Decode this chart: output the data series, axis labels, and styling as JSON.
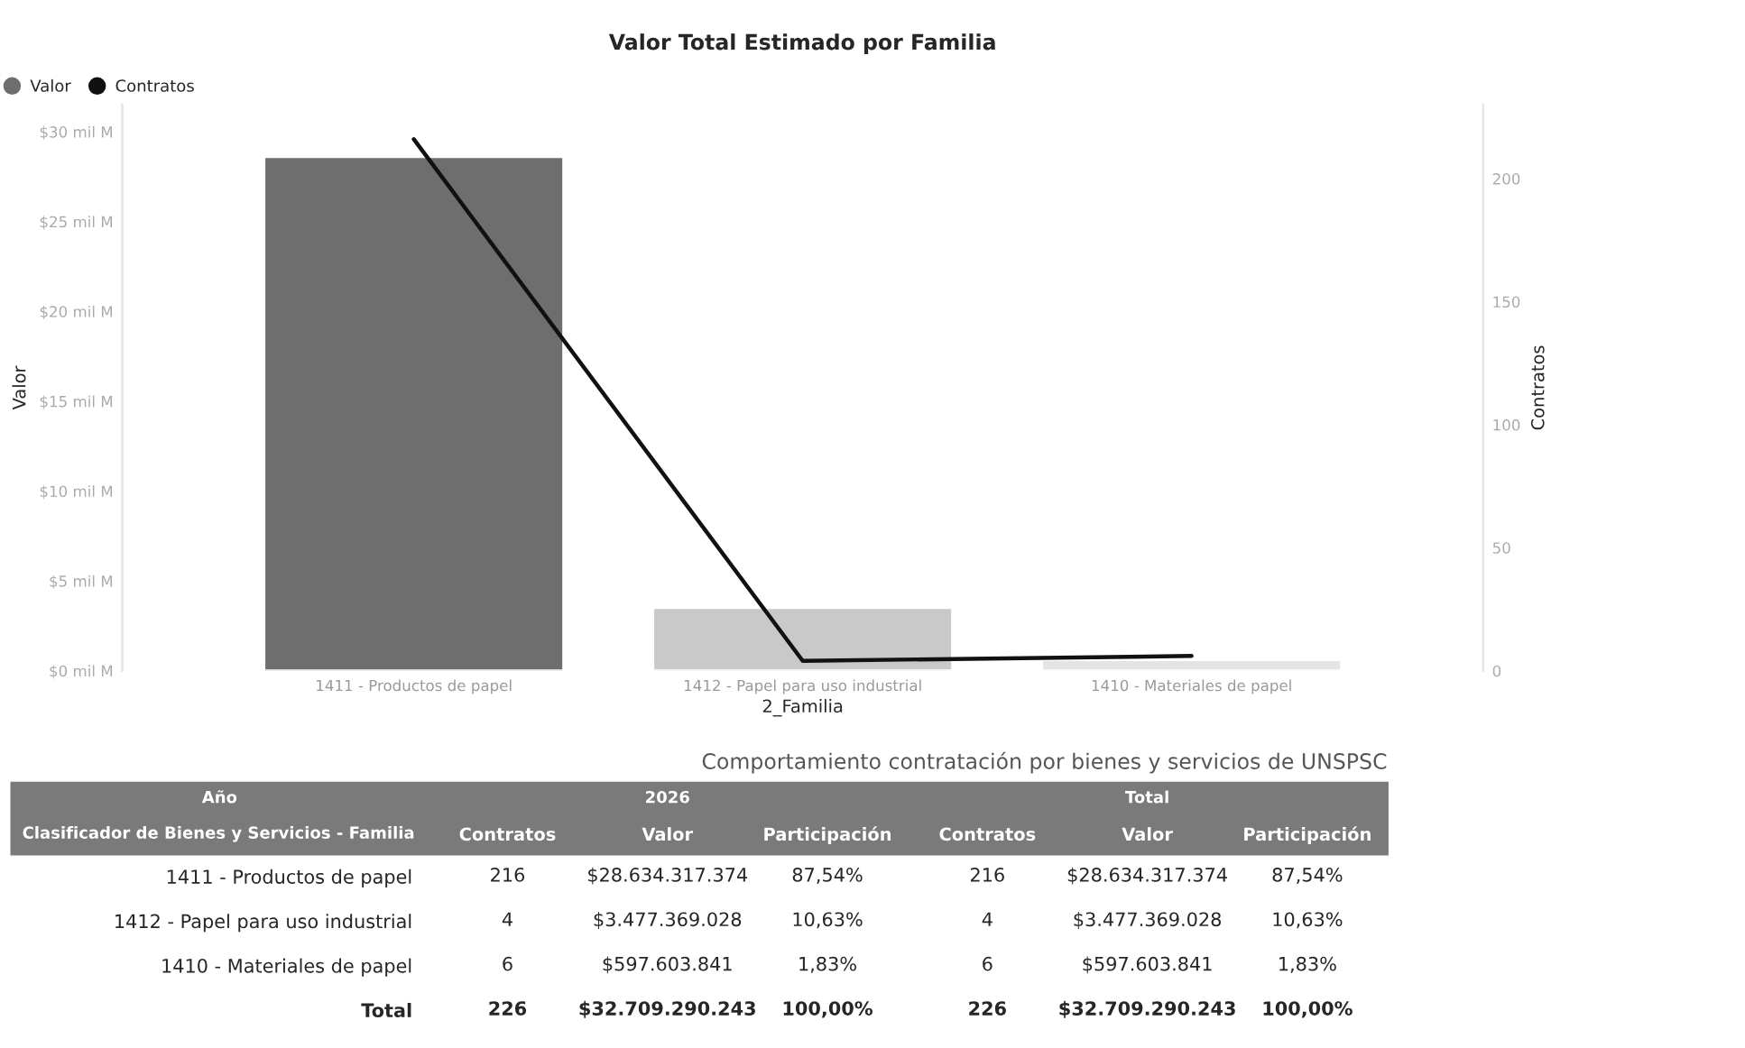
{
  "chart_data": [
    {
      "type": "bar",
      "title": "Valor Total Estimado por Familia",
      "xlabel": "2_Familia",
      "ylabel": "Valor",
      "y2label": "Contratos",
      "categories": [
        "1411 - Productos de papel",
        "1412 - Papel para uso industrial",
        "1410 - Materiales de papel"
      ],
      "series": [
        {
          "name": "Valor",
          "type": "bar",
          "color": "#6e6e6e",
          "colors": [
            "#6e6e6e",
            "#c9c9c9",
            "#e4e4e4"
          ],
          "values": [
            28.6,
            3.5,
            0.6
          ]
        },
        {
          "name": "Contratos",
          "type": "line",
          "axis": "y2",
          "color": "#111111",
          "values": [
            216,
            4,
            6
          ]
        }
      ],
      "ylim": [
        0,
        31.5
      ],
      "yticks": [
        {
          "value": 0,
          "label": "$0 mil M"
        },
        {
          "value": 5,
          "label": "$5 mil M"
        },
        {
          "value": 10,
          "label": "$10 mil M"
        },
        {
          "value": 15,
          "label": "$15 mil M"
        },
        {
          "value": 20,
          "label": "$20 mil M"
        },
        {
          "value": 25,
          "label": "$25 mil M"
        },
        {
          "value": 30,
          "label": "$30 mil M"
        }
      ],
      "y2lim": [
        0,
        230
      ],
      "y2ticks": [
        0,
        50,
        100,
        150,
        200
      ],
      "legend": "top left",
      "grid": false
    },
    {
      "type": "other",
      "title": "Comportamiento contratación por bienes y servicios de UNSPSC",
      "categories": [
        "Contratos",
        "Valor",
        "Participación",
        "Contratos",
        "Valor",
        "Participación"
      ],
      "y_categories": [
        "1411 - Productos de papel",
        "1412 - Papel para uso industrial",
        "1410 - Materiales de papel",
        "Total"
      ],
      "cell_labels": [
        [
          "216",
          "$28.634.317.374",
          "87,54%",
          "216",
          "$28.634.317.374",
          "87,54%"
        ],
        [
          "4",
          "$3.477.369.028",
          "10,63%",
          "4",
          "$3.477.369.028",
          "10,63%"
        ],
        [
          "6",
          "$597.603.841",
          "1,83%",
          "6",
          "$597.603.841",
          "1,83%"
        ],
        [
          "226",
          "$32.709.290.243",
          "100,00%",
          "226",
          "$32.709.290.243",
          "100,00%"
        ]
      ],
      "annotations": [
        "Año",
        "2026",
        "Total",
        "Clasificador de Bienes y Servicios - Familia"
      ]
    }
  ]
}
